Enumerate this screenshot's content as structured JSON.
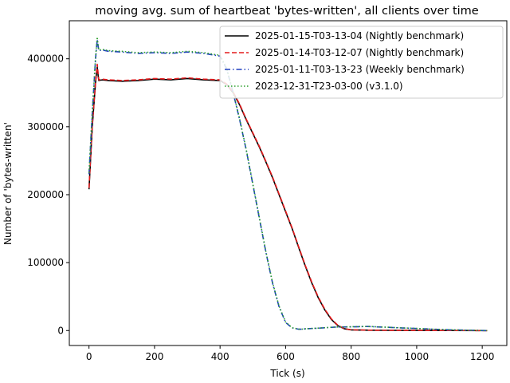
{
  "chart_data": {
    "type": "line",
    "title": "moving avg. sum of heartbeat 'bytes-written', all clients over time",
    "xlabel": "Tick (s)",
    "ylabel": "Number of 'bytes-written'",
    "xlim": [
      -60,
      1275
    ],
    "ylim": [
      -22000,
      456000
    ],
    "xticks": [
      0,
      200,
      400,
      600,
      800,
      1000,
      1200
    ],
    "yticks": [
      0,
      100000,
      200000,
      300000,
      400000
    ],
    "grid": false,
    "legend_position": "top-right",
    "series": [
      {
        "name": "2025-01-15-T03-13-04 (Nightly benchmark)",
        "color": "#000000",
        "dash": "solid",
        "x": [
          0,
          10,
          20,
          25,
          28,
          30,
          40,
          60,
          100,
          150,
          200,
          250,
          300,
          350,
          400,
          420,
          440,
          460,
          480,
          500,
          520,
          540,
          560,
          580,
          600,
          620,
          640,
          660,
          680,
          700,
          720,
          740,
          760,
          780,
          800,
          850,
          900,
          1000,
          1100,
          1215
        ],
        "y": [
          208000,
          300000,
          365000,
          388000,
          375000,
          368000,
          369000,
          368000,
          367000,
          368000,
          370000,
          369000,
          371000,
          369000,
          368000,
          362000,
          350000,
          332000,
          310000,
          290000,
          270000,
          248000,
          225000,
          200000,
          175000,
          150000,
          122000,
          95000,
          70000,
          48000,
          30000,
          16000,
          7000,
          2500,
          1000,
          500,
          300,
          200,
          100,
          0
        ]
      },
      {
        "name": "2025-01-14-T03-12-07 (Nightly benchmark)",
        "color": "#e41a1c",
        "dash": "dashed",
        "x": [
          0,
          10,
          20,
          25,
          28,
          30,
          40,
          60,
          100,
          150,
          200,
          250,
          300,
          350,
          400,
          420,
          440,
          460,
          480,
          500,
          520,
          540,
          560,
          580,
          600,
          620,
          640,
          660,
          680,
          700,
          720,
          740,
          760,
          780,
          800,
          850,
          900,
          1000,
          1100,
          1215
        ],
        "y": [
          210000,
          302000,
          366000,
          392000,
          378000,
          369000,
          370000,
          369000,
          368000,
          369000,
          371000,
          370000,
          372000,
          370000,
          369000,
          363000,
          351000,
          333000,
          311000,
          291000,
          271000,
          249000,
          226000,
          201000,
          176000,
          151000,
          123000,
          96000,
          71000,
          49000,
          31000,
          17000,
          7500,
          2800,
          1100,
          500,
          300,
          200,
          100,
          0
        ]
      },
      {
        "name": "2025-01-11-T03-13-23 (Weekly benchmark)",
        "color": "#1f3fbf",
        "dash": "dashdot",
        "x": [
          0,
          10,
          20,
          25,
          28,
          30,
          40,
          60,
          100,
          150,
          200,
          250,
          300,
          350,
          400,
          420,
          440,
          460,
          480,
          500,
          520,
          540,
          560,
          580,
          600,
          620,
          640,
          650,
          660,
          700,
          750,
          800,
          850,
          900,
          950,
          1000,
          1050,
          1100,
          1150,
          1215
        ],
        "y": [
          230000,
          320000,
          400000,
          428000,
          418000,
          412000,
          413000,
          411000,
          410000,
          408000,
          409000,
          408000,
          410000,
          408000,
          404000,
          385000,
          350000,
          310000,
          265000,
          215000,
          165000,
          115000,
          70000,
          35000,
          12000,
          4000,
          2000,
          2000,
          2500,
          3500,
          5000,
          5500,
          6000,
          5000,
          4000,
          3000,
          2000,
          1000,
          500,
          0
        ]
      },
      {
        "name": "2023-12-31-T23-03-00 (v3.1.0)",
        "color": "#2ca02c",
        "dash": "dotted",
        "x": [
          0,
          10,
          20,
          25,
          28,
          30,
          40,
          60,
          100,
          150,
          200,
          250,
          300,
          350,
          400,
          420,
          440,
          460,
          480,
          500,
          520,
          540,
          560,
          580,
          600,
          620,
          640,
          650,
          660,
          700,
          750,
          800,
          850,
          900,
          950,
          1000,
          1050,
          1100,
          1150,
          1215
        ],
        "y": [
          232000,
          322000,
          402000,
          432000,
          420000,
          413000,
          414000,
          412000,
          411000,
          409000,
          410000,
          409000,
          411000,
          409000,
          405000,
          386000,
          351000,
          311000,
          266000,
          216000,
          166000,
          116000,
          71000,
          36000,
          12500,
          4200,
          2100,
          2100,
          2600,
          3600,
          5100,
          5600,
          6100,
          5100,
          4100,
          3100,
          2100,
          1100,
          600,
          0
        ]
      }
    ]
  }
}
